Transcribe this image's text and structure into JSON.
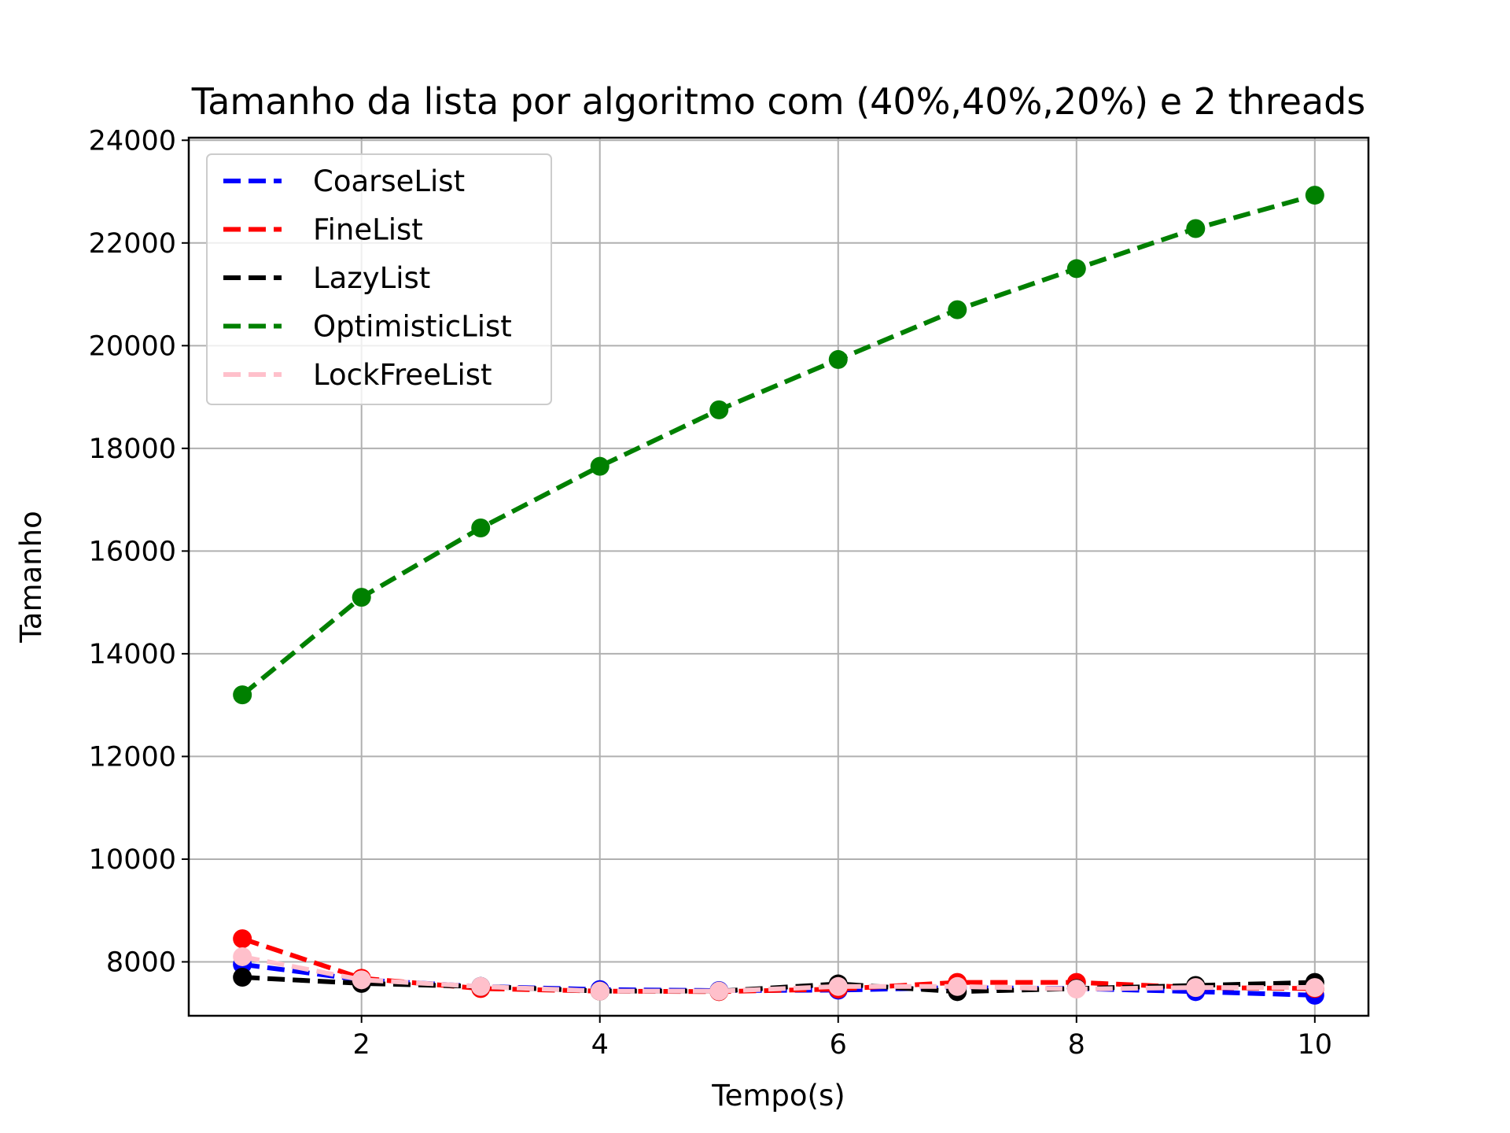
{
  "chart_data": {
    "type": "line",
    "title": "Tamanho da lista por algoritmo com (40%,40%,20%) e 2 threads",
    "xlabel": "Tempo(s)",
    "ylabel": "Tamanho",
    "x": [
      1,
      2,
      3,
      4,
      5,
      6,
      7,
      8,
      9,
      10
    ],
    "xlim": [
      0.55,
      10.45
    ],
    "ylim": [
      6950,
      24050
    ],
    "xticks": [
      "2",
      "4",
      "6",
      "8",
      "10"
    ],
    "yticks": [
      "8000",
      "10000",
      "12000",
      "14000",
      "16000",
      "18000",
      "20000",
      "22000",
      "24000"
    ],
    "grid": true,
    "legend_position": "top-left",
    "series": [
      {
        "name": "CoarseList",
        "color": "#0000ff",
        "values": [
          7950,
          7650,
          7520,
          7460,
          7440,
          7450,
          7500,
          7480,
          7420,
          7350
        ]
      },
      {
        "name": "FineList",
        "color": "#ff0000",
        "values": [
          8450,
          7680,
          7480,
          7430,
          7420,
          7470,
          7600,
          7600,
          7500,
          7480
        ]
      },
      {
        "name": "LazyList",
        "color": "#000000",
        "values": [
          7700,
          7580,
          7520,
          7430,
          7430,
          7570,
          7420,
          7480,
          7540,
          7600
        ]
      },
      {
        "name": "OptimisticList",
        "color": "#008000",
        "values": [
          13200,
          15100,
          16450,
          17650,
          18750,
          19730,
          20700,
          21500,
          22280,
          22930
        ]
      },
      {
        "name": "LockFreeList",
        "color": "#ffc0cb",
        "values": [
          8100,
          7650,
          7520,
          7430,
          7430,
          7520,
          7520,
          7470,
          7500,
          7500
        ]
      }
    ]
  }
}
